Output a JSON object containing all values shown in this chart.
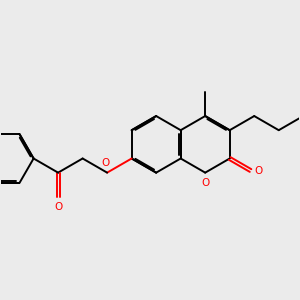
{
  "bg_color": "#ebebeb",
  "bond_color": "#000000",
  "oxygen_color": "#ff0000",
  "lw": 1.4,
  "dbo": 0.055,
  "BL": 1.0,
  "figsize": [
    3.0,
    3.0
  ],
  "dpi": 100,
  "xlim": [
    -1.0,
    9.5
  ],
  "ylim": [
    -1.5,
    5.5
  ]
}
